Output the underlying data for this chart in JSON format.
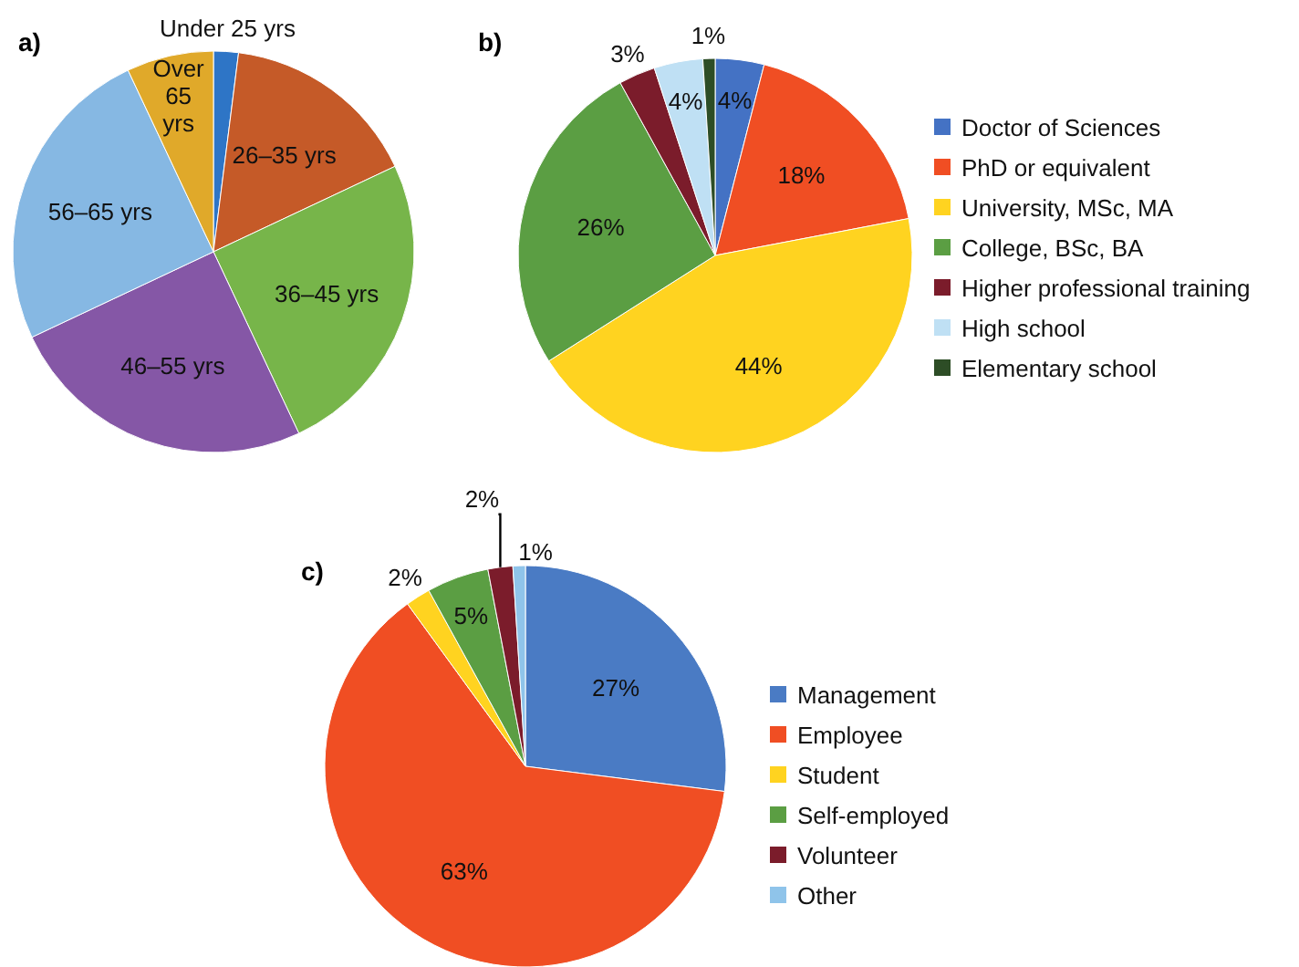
{
  "chart_data": [
    {
      "type": "pie",
      "title": "a)",
      "categories": [
        "Under 25 yrs",
        "26–35 yrs",
        "36–45 yrs",
        "46–55 yrs",
        "56–65 yrs",
        "Over 65 yrs"
      ],
      "values": [
        2,
        16,
        25,
        25,
        25,
        7
      ],
      "colors": [
        "#2e75c6",
        "#c55a28",
        "#77b54a",
        "#8557a6",
        "#86b8e3",
        "#e0a92a"
      ],
      "legend": false
    },
    {
      "type": "pie",
      "title": "b)",
      "categories": [
        "Doctor of Sciences",
        "PhD or equivalent",
        "University, MSc, MA",
        "College, BSc, BA",
        "Higher professional training",
        "High school",
        "Elementary school"
      ],
      "values": [
        4,
        18,
        44,
        26,
        3,
        4,
        1
      ],
      "value_labels": [
        "4%",
        "18%",
        "44%",
        "26%",
        "3%",
        "4%",
        "1%"
      ],
      "colors": [
        "#4472c4",
        "#f04e23",
        "#ffd320",
        "#5b9e43",
        "#7b1c2b",
        "#bfe0f4",
        "#2d4d26"
      ],
      "legend": "right"
    },
    {
      "type": "pie",
      "title": "c)",
      "categories": [
        "Management",
        "Employee",
        "Student",
        "Self-employed",
        "Volunteer",
        "Other"
      ],
      "values": [
        27,
        63,
        2,
        5,
        2,
        1
      ],
      "value_labels": [
        "27%",
        "63%",
        "2%",
        "5%",
        "2%",
        "1%"
      ],
      "colors": [
        "#4a7bc4",
        "#f04e23",
        "#ffd320",
        "#5b9e43",
        "#7b1c2b",
        "#8fc4ea"
      ],
      "legend": "right"
    }
  ]
}
